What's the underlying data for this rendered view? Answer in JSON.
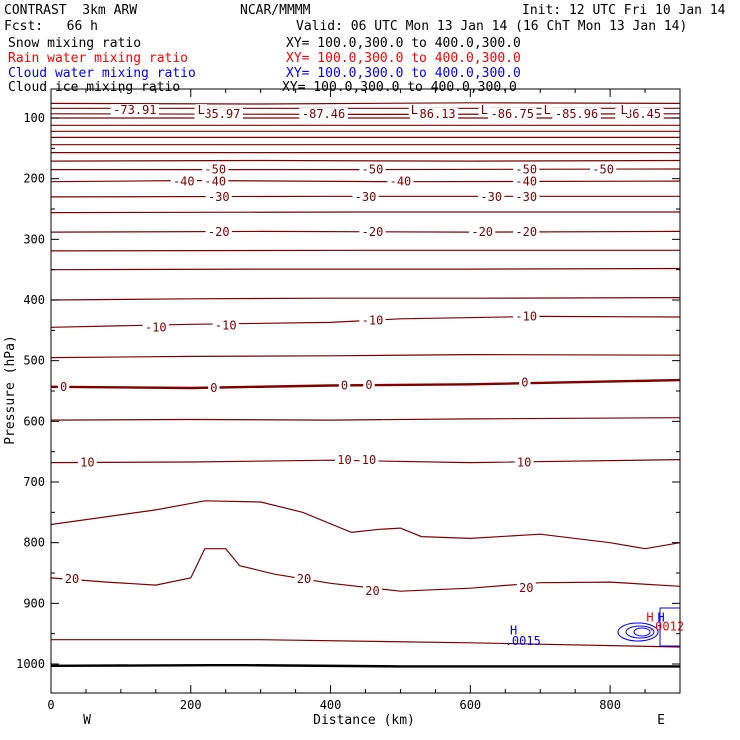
{
  "header": {
    "model": "CONTRAST  3km ARW",
    "center": "NCAR/MMMM",
    "init": "Init: 12 UTC Fri 10 Jan 14",
    "fcst": "Fcst:   66 h",
    "valid": "Valid: 06 UTC Mon 13 Jan 14 (16 ChT Mon 13 Jan 14)"
  },
  "legend": [
    {
      "label": "Snow mixing ratio",
      "xy": "XY= 100.0,300.0 to 400.0,300.0",
      "color": "#000000"
    },
    {
      "label": "Rain water mixing ratio",
      "xy": "XY= 100.0,300.0 to 400.0,300.0",
      "color": "#ff0000"
    },
    {
      "label": "Cloud water mixing ratio",
      "xy": "XY= 100.0,300.0 to 400.0,300.0",
      "color": "#0000ff"
    },
    {
      "label": "Cloud ice mixing ratio",
      "xy": "XY= 100.0,300.0 to 400.0,300.0",
      "color": "#000000"
    }
  ],
  "chart_data": {
    "type": "line",
    "xlabel": "Distance (km)",
    "ylabel": "Pressure (hPa)",
    "xlim": [
      0,
      900
    ],
    "ylim": [
      1050,
      70
    ],
    "x_ticks": [
      0,
      200,
      400,
      600,
      800
    ],
    "y_ticks": [
      100,
      200,
      300,
      400,
      500,
      600,
      700,
      800,
      900,
      1000
    ],
    "x_end_labels": {
      "left": "W",
      "right": "E"
    },
    "contour_color": "#800000",
    "series": [
      {
        "points": [
          [
            0,
            76
          ],
          [
            300,
            77
          ],
          [
            600,
            75
          ],
          [
            900,
            76
          ]
        ]
      },
      {
        "points": [
          [
            0,
            84
          ],
          [
            450,
            84
          ],
          [
            900,
            84
          ]
        ]
      },
      {
        "points": [
          [
            0,
            93
          ],
          [
            450,
            94
          ],
          [
            900,
            93
          ]
        ]
      },
      {
        "points": [
          [
            0,
            100
          ],
          [
            450,
            100
          ],
          [
            900,
            100
          ]
        ]
      },
      {
        "points": [
          [
            0,
            112
          ],
          [
            450,
            112
          ],
          [
            900,
            112
          ]
        ]
      },
      {
        "points": [
          [
            0,
            122
          ],
          [
            450,
            122
          ],
          [
            900,
            122
          ]
        ]
      },
      {
        "points": [
          [
            0,
            132
          ],
          [
            450,
            132
          ],
          [
            900,
            132
          ]
        ]
      },
      {
        "points": [
          [
            0,
            144
          ],
          [
            450,
            144
          ],
          [
            900,
            144
          ]
        ]
      },
      {
        "points": [
          [
            0,
            157
          ],
          [
            450,
            157
          ],
          [
            900,
            157
          ]
        ]
      },
      {
        "points": [
          [
            0,
            171
          ],
          [
            300,
            170
          ],
          [
            600,
            171
          ],
          [
            900,
            170
          ]
        ]
      },
      {
        "points": [
          [
            0,
            185
          ],
          [
            450,
            185
          ],
          [
            900,
            184
          ]
        ]
      },
      {
        "points": [
          [
            0,
            205
          ],
          [
            200,
            203
          ],
          [
            500,
            205
          ],
          [
            900,
            204
          ]
        ]
      },
      {
        "points": [
          [
            0,
            230
          ],
          [
            400,
            229
          ],
          [
            900,
            229
          ]
        ]
      },
      {
        "points": [
          [
            0,
            256
          ],
          [
            450,
            255
          ],
          [
            900,
            255
          ]
        ]
      },
      {
        "points": [
          [
            0,
            288
          ],
          [
            300,
            287
          ],
          [
            600,
            288
          ],
          [
            900,
            287
          ]
        ]
      },
      {
        "points": [
          [
            0,
            319
          ],
          [
            450,
            318
          ],
          [
            900,
            318
          ]
        ]
      },
      {
        "points": [
          [
            0,
            350
          ],
          [
            300,
            349
          ],
          [
            600,
            349
          ],
          [
            900,
            348
          ]
        ]
      },
      {
        "points": [
          [
            0,
            400
          ],
          [
            200,
            398
          ],
          [
            400,
            397
          ],
          [
            600,
            397
          ],
          [
            900,
            396
          ]
        ]
      },
      {
        "points": [
          [
            0,
            445
          ],
          [
            200,
            440
          ],
          [
            400,
            437
          ],
          [
            500,
            431
          ],
          [
            700,
            427
          ],
          [
            900,
            428
          ]
        ]
      },
      {
        "points": [
          [
            0,
            495
          ],
          [
            200,
            493
          ],
          [
            400,
            492
          ],
          [
            600,
            490
          ],
          [
            900,
            491
          ]
        ]
      },
      {
        "points": [
          [
            0,
            543
          ],
          [
            200,
            545
          ],
          [
            400,
            541
          ],
          [
            600,
            539
          ],
          [
            900,
            532
          ]
        ],
        "bold": true
      },
      {
        "points": [
          [
            0,
            598
          ],
          [
            200,
            597
          ],
          [
            400,
            598
          ],
          [
            600,
            596
          ],
          [
            900,
            594
          ]
        ]
      },
      {
        "points": [
          [
            0,
            668
          ],
          [
            200,
            667
          ],
          [
            400,
            664
          ],
          [
            600,
            668
          ],
          [
            900,
            663
          ]
        ]
      },
      {
        "points": [
          [
            0,
            770
          ],
          [
            150,
            746
          ],
          [
            220,
            731
          ],
          [
            300,
            733
          ],
          [
            360,
            750
          ],
          [
            430,
            783
          ],
          [
            470,
            778
          ],
          [
            500,
            776
          ],
          [
            530,
            790
          ],
          [
            600,
            793
          ],
          [
            700,
            786
          ],
          [
            800,
            800
          ],
          [
            850,
            810
          ],
          [
            900,
            800
          ]
        ]
      },
      {
        "points": [
          [
            0,
            858
          ],
          [
            80,
            865
          ],
          [
            150,
            870
          ],
          [
            200,
            858
          ],
          [
            220,
            810
          ],
          [
            250,
            810
          ],
          [
            270,
            838
          ],
          [
            320,
            852
          ],
          [
            400,
            867
          ],
          [
            500,
            880
          ],
          [
            600,
            875
          ],
          [
            700,
            866
          ],
          [
            800,
            865
          ],
          [
            900,
            872
          ]
        ]
      },
      {
        "points": [
          [
            0,
            960
          ],
          [
            300,
            960
          ],
          [
            600,
            965
          ],
          [
            900,
            972
          ]
        ]
      }
    ],
    "surface": {
      "points": [
        [
          0,
          1003
        ],
        [
          230,
          1002
        ],
        [
          280,
          1002
        ],
        [
          500,
          1004
        ],
        [
          900,
          1004
        ]
      ]
    },
    "labels": [
      {
        "text": "-73.91",
        "x": 120,
        "p": 87
      },
      {
        "text": "-85.97",
        "x": 240,
        "p": 93
      },
      {
        "text": "-87.46",
        "x": 390,
        "p": 93
      },
      {
        "text": "-86.13",
        "x": 548,
        "p": 93
      },
      {
        "text": "-86.75",
        "x": 660,
        "p": 93
      },
      {
        "text": "-85.96",
        "x": 752,
        "p": 93
      },
      {
        "text": "-86.45",
        "x": 842,
        "p": 93
      },
      {
        "text": "L",
        "x": 215,
        "p": 87
      },
      {
        "text": "L",
        "x": 520,
        "p": 87
      },
      {
        "text": "L",
        "x": 620,
        "p": 87
      },
      {
        "text": "L",
        "x": 710,
        "p": 87
      },
      {
        "text": "L",
        "x": 820,
        "p": 87
      },
      {
        "text": "-50",
        "x": 235,
        "p": 185
      },
      {
        "text": "-50",
        "x": 460,
        "p": 185
      },
      {
        "text": "-50",
        "x": 680,
        "p": 185
      },
      {
        "text": "-50",
        "x": 790,
        "p": 185
      },
      {
        "text": "-40",
        "x": 190,
        "p": 205
      },
      {
        "text": "-40",
        "x": 235,
        "p": 205
      },
      {
        "text": "-40",
        "x": 500,
        "p": 205
      },
      {
        "text": "-40",
        "x": 680,
        "p": 205
      },
      {
        "text": "-30",
        "x": 240,
        "p": 230
      },
      {
        "text": "-30",
        "x": 450,
        "p": 230
      },
      {
        "text": "-30",
        "x": 630,
        "p": 230
      },
      {
        "text": "-30",
        "x": 680,
        "p": 230
      },
      {
        "text": "-20",
        "x": 240,
        "p": 288
      },
      {
        "text": "-20",
        "x": 460,
        "p": 288
      },
      {
        "text": "-20",
        "x": 617,
        "p": 288
      },
      {
        "text": "-20",
        "x": 680,
        "p": 288
      },
      {
        "text": "-10",
        "x": 150,
        "p": 445
      },
      {
        "text": "-10",
        "x": 250,
        "p": 442
      },
      {
        "text": "-10",
        "x": 460,
        "p": 434
      },
      {
        "text": "-10",
        "x": 680,
        "p": 427
      },
      {
        "text": "0",
        "x": 18,
        "p": 543
      },
      {
        "text": "0",
        "x": 233,
        "p": 545
      },
      {
        "text": "0",
        "x": 420,
        "p": 541
      },
      {
        "text": "0",
        "x": 455,
        "p": 540
      },
      {
        "text": "0",
        "x": 678,
        "p": 536
      },
      {
        "text": "10",
        "x": 52,
        "p": 668
      },
      {
        "text": "10",
        "x": 420,
        "p": 664
      },
      {
        "text": "10",
        "x": 455,
        "p": 664
      },
      {
        "text": "10",
        "x": 677,
        "p": 668
      },
      {
        "text": "20",
        "x": 30,
        "p": 860
      },
      {
        "text": "20",
        "x": 362,
        "p": 860
      },
      {
        "text": "20",
        "x": 460,
        "p": 880
      },
      {
        "text": "20",
        "x": 680,
        "p": 875
      }
    ],
    "annotations": [
      {
        "text": "H",
        "x": 662,
        "p": 945,
        "color": "#0000ff"
      },
      {
        "text": ".0015",
        "x": 675,
        "p": 962,
        "color": "#0000ff"
      },
      {
        "text": "H",
        "x": 857,
        "p": 923,
        "color": "#ff0000"
      },
      {
        "text": "H",
        "x": 873,
        "p": 923,
        "color": "#0000ff"
      },
      {
        "text": ".0012",
        "x": 880,
        "p": 938,
        "color": "#ff0000"
      }
    ]
  }
}
